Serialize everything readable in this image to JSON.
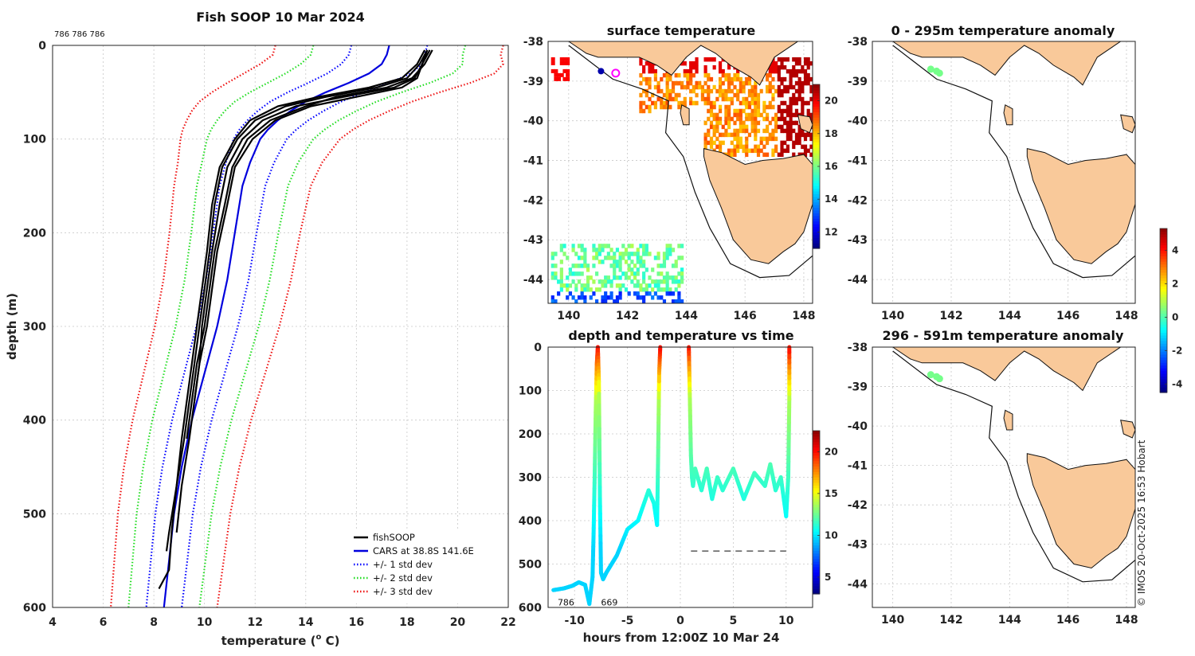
{
  "colors": {
    "fishsoop": "#000000",
    "cars": "#0000dd",
    "std1": "#0000ff",
    "std2": "#22dd22",
    "std3": "#ee1111",
    "land": "#f9c99a",
    "grid": "#c8c8c8"
  },
  "copyright": "© IMOS 20-Oct-2025 16:53 Hobart",
  "chart_data": [
    {
      "id": "profile",
      "type": "line",
      "title": "Fish SOOP 10 Mar 2024",
      "subtitle": "786 786 786",
      "xlabel_main": "temperature (",
      "xlabel_sup": "o",
      "xlabel_tail": " C)",
      "ylabel": "depth (m)",
      "xlim": [
        4,
        22
      ],
      "ylim": [
        600,
        0
      ],
      "xticks": [
        4,
        6,
        8,
        10,
        12,
        14,
        16,
        18,
        20,
        22
      ],
      "yticks": [
        0,
        100,
        200,
        300,
        400,
        500,
        600
      ],
      "grid": true,
      "legend_position": "bottom-right",
      "legend": [
        {
          "label": "fishSOOP",
          "key": "fishsoop",
          "style": "solid"
        },
        {
          "label": "CARS at 38.8S 141.6E",
          "key": "cars",
          "style": "solid"
        },
        {
          "label": "+/- 1 std dev",
          "key": "std1",
          "style": "dotted"
        },
        {
          "label": "+/- 2 std dev",
          "key": "std2",
          "style": "dotted"
        },
        {
          "label": "+/- 3 std dev",
          "key": "std3",
          "style": "dotted"
        }
      ],
      "depth": [
        0,
        10,
        20,
        30,
        40,
        50,
        60,
        70,
        80,
        90,
        100,
        125,
        150,
        200,
        250,
        300,
        350,
        400,
        450,
        500,
        550,
        600
      ],
      "cars_mean": [
        17.3,
        17.2,
        17.0,
        16.5,
        15.7,
        14.8,
        14.0,
        13.4,
        12.9,
        12.5,
        12.2,
        11.8,
        11.5,
        11.2,
        10.9,
        10.5,
        10.0,
        9.5,
        9.1,
        8.8,
        8.6,
        8.4
      ],
      "cars_std": [
        1.5,
        1.5,
        1.6,
        1.65,
        1.6,
        1.5,
        1.4,
        1.3,
        1.2,
        1.12,
        1.05,
        0.95,
        0.9,
        0.86,
        0.84,
        0.82,
        0.8,
        0.78,
        0.76,
        0.74,
        0.72,
        0.7
      ],
      "fishsoop_series": [
        {
          "name": "profile-1",
          "depth": [
            5,
            20,
            35,
            45,
            55,
            65,
            80,
            100,
            130,
            170,
            220,
            260,
            300,
            340,
            380,
            420,
            470,
            520
          ],
          "temp": [
            18.9,
            18.6,
            18.3,
            17.5,
            15.5,
            13.6,
            12.3,
            11.5,
            10.9,
            10.6,
            10.3,
            10.1,
            9.9,
            9.8,
            9.6,
            9.4,
            9.1,
            8.9
          ]
        },
        {
          "name": "profile-2",
          "depth": [
            5,
            20,
            35,
            45,
            55,
            65,
            80,
            100,
            130,
            170,
            220,
            260,
            300,
            340,
            380,
            420,
            470,
            520,
            560,
            580
          ],
          "temp": [
            18.8,
            18.5,
            18.0,
            16.8,
            14.8,
            13.2,
            12.0,
            11.3,
            10.7,
            10.4,
            10.2,
            10.0,
            9.8,
            9.6,
            9.4,
            9.2,
            8.9,
            8.7,
            8.6,
            8.2
          ]
        },
        {
          "name": "profile-3",
          "depth": [
            5,
            20,
            35,
            45,
            55,
            65,
            80,
            100,
            130,
            170,
            220,
            260,
            300,
            340,
            380,
            420
          ],
          "temp": [
            19.0,
            18.7,
            18.2,
            17.2,
            15.2,
            14.0,
            12.6,
            11.7,
            11.1,
            10.8,
            10.4,
            10.2,
            10.0,
            9.7,
            9.5,
            9.3
          ]
        },
        {
          "name": "profile-4",
          "depth": [
            5,
            20,
            35,
            45,
            55,
            65,
            80,
            100,
            130,
            170,
            220,
            260,
            300,
            340,
            380,
            420,
            470,
            520,
            540
          ],
          "temp": [
            18.7,
            18.4,
            17.8,
            16.5,
            14.5,
            12.9,
            11.8,
            11.2,
            10.6,
            10.3,
            10.1,
            9.9,
            9.7,
            9.5,
            9.3,
            9.1,
            8.9,
            8.6,
            8.5
          ]
        },
        {
          "name": "profile-5",
          "depth": [
            5,
            20,
            35,
            45,
            55,
            65,
            80,
            100,
            130,
            170,
            220,
            260,
            300,
            340,
            380
          ],
          "temp": [
            18.8,
            18.6,
            18.4,
            17.8,
            16.0,
            14.2,
            12.8,
            11.9,
            11.2,
            10.9,
            10.5,
            10.3,
            10.1,
            9.8,
            9.6
          ]
        }
      ],
      "labels": []
    },
    {
      "id": "timeseries",
      "type": "scatter",
      "title": "depth and temperature vs time",
      "xlabel": "hours from 12:00Z 10 Mar 24",
      "xlim": [
        -12.5,
        12.5
      ],
      "ylim": [
        600,
        0
      ],
      "xticks": [
        -10,
        -5,
        0,
        5,
        10
      ],
      "yticks": [
        0,
        100,
        200,
        300,
        400,
        500,
        600
      ],
      "grid": true,
      "colorbar_ticks": [
        5,
        10,
        15,
        20
      ],
      "clim": [
        3,
        22.5
      ],
      "dashed_line_depth": 470,
      "dashed_line_x": [
        1,
        10
      ],
      "labels": [
        {
          "text": "786",
          "x": -11.6,
          "y": 588
        },
        {
          "text": "669",
          "x": -7.5,
          "y": 588
        }
      ],
      "segments": [
        {
          "name": "seg-1",
          "hours": [
            -12.0,
            -11.0,
            -10.2,
            -9.6,
            -9.0,
            -8.6,
            -8.3
          ],
          "depth": [
            560,
            556,
            550,
            542,
            548,
            592,
            530
          ]
        },
        {
          "name": "seg-2",
          "hours": [
            -8.3,
            -8.2,
            -8.1,
            -8.0,
            -7.9,
            -7.8,
            -7.7,
            -7.6
          ],
          "depth": [
            530,
            430,
            300,
            150,
            40,
            0,
            80,
            350
          ]
        },
        {
          "name": "seg-3",
          "hours": [
            -7.6,
            -7.5,
            -7.3,
            -7.0,
            -6.5,
            -6.0,
            -5.0,
            -4.0,
            -3.0,
            -2.5,
            -2.2
          ],
          "depth": [
            350,
            520,
            535,
            520,
            500,
            480,
            420,
            400,
            330,
            360,
            410
          ]
        },
        {
          "name": "seg-4",
          "hours": [
            -2.2,
            -2.1,
            -2.0,
            -1.9
          ],
          "depth": [
            410,
            250,
            60,
            0
          ]
        },
        {
          "name": "seg-5",
          "hours": [
            0.8,
            0.9,
            1.0,
            1.1,
            1.2,
            1.4,
            2.0,
            2.5,
            3.0,
            3.5,
            4.0,
            5.0,
            6.0,
            7.0,
            8.0,
            8.5,
            9.0,
            9.5,
            10.0,
            10.2,
            10.3,
            10.3
          ],
          "depth": [
            0,
            120,
            250,
            300,
            320,
            280,
            330,
            280,
            350,
            300,
            330,
            280,
            350,
            290,
            320,
            270,
            330,
            300,
            390,
            300,
            120,
            0
          ]
        }
      ]
    },
    {
      "id": "map-sst",
      "type": "heatmap",
      "title": "surface temperature",
      "xlim": [
        139.3,
        148.3
      ],
      "ylim": [
        -44.6,
        -38
      ],
      "xticks": [
        140,
        142,
        144,
        146,
        148
      ],
      "yticks": [
        -38,
        -39,
        -40,
        -41,
        -42,
        -43,
        -44
      ],
      "colorbar_ticks": [
        12,
        14,
        16,
        18,
        20
      ],
      "clim": [
        11,
        21
      ]
    },
    {
      "id": "map-anom-1",
      "type": "heatmap",
      "title": "0 - 295m temperature anomaly",
      "xlim": [
        139.3,
        148.3
      ],
      "ylim": [
        -44.6,
        -38
      ],
      "xticks": [
        140,
        142,
        144,
        146,
        148
      ],
      "yticks": [
        -38,
        -39,
        -40,
        -41,
        -42,
        -43,
        -44
      ],
      "colorbar_ticks": [
        -4,
        -2,
        0,
        2,
        4
      ],
      "clim": [
        -4.5,
        5.3
      ],
      "points": [
        [
          141.3,
          -38.7
        ],
        [
          141.6,
          -38.8
        ],
        [
          141.5,
          -38.75
        ]
      ]
    },
    {
      "id": "map-anom-2",
      "type": "heatmap",
      "title": "296 - 591m temperature anomaly",
      "xlim": [
        139.3,
        148.3
      ],
      "ylim": [
        -44.6,
        -38
      ],
      "xticks": [
        140,
        142,
        144,
        146,
        148
      ],
      "yticks": [
        -38,
        -39,
        -40,
        -41,
        -42,
        -43,
        -44
      ],
      "points": [
        [
          141.3,
          -38.7
        ],
        [
          141.6,
          -38.8
        ],
        [
          141.5,
          -38.75
        ]
      ]
    }
  ],
  "geo": {
    "mainland": [
      [
        139.3,
        -38.0
      ],
      [
        140.0,
        -38.0
      ],
      [
        140.1,
        -38.05
      ],
      [
        140.6,
        -38.3
      ],
      [
        141.0,
        -38.4
      ],
      [
        141.6,
        -38.4
      ],
      [
        142.4,
        -38.4
      ],
      [
        143.0,
        -38.6
      ],
      [
        143.5,
        -38.85
      ],
      [
        144.0,
        -38.4
      ],
      [
        144.5,
        -38.1
      ],
      [
        145.0,
        -38.3
      ],
      [
        145.5,
        -38.6
      ],
      [
        146.2,
        -38.9
      ],
      [
        146.5,
        -39.1
      ],
      [
        147.0,
        -38.4
      ],
      [
        148.0,
        -37.9
      ],
      [
        148.3,
        -37.8
      ],
      [
        148.3,
        -38.0
      ]
    ],
    "tasmania": [
      [
        144.6,
        -40.7
      ],
      [
        145.2,
        -40.8
      ],
      [
        146.0,
        -41.1
      ],
      [
        146.6,
        -41.0
      ],
      [
        147.3,
        -40.95
      ],
      [
        148.0,
        -40.85
      ],
      [
        148.3,
        -41.1
      ],
      [
        148.3,
        -42.1
      ],
      [
        148.0,
        -42.8
      ],
      [
        147.7,
        -43.1
      ],
      [
        147.3,
        -43.3
      ],
      [
        146.8,
        -43.6
      ],
      [
        146.2,
        -43.5
      ],
      [
        145.6,
        -43.0
      ],
      [
        145.2,
        -42.2
      ],
      [
        144.8,
        -41.5
      ],
      [
        144.6,
        -40.9
      ]
    ],
    "king_island": [
      [
        143.85,
        -39.6
      ],
      [
        144.1,
        -39.7
      ],
      [
        144.1,
        -40.1
      ],
      [
        143.9,
        -40.1
      ],
      [
        143.8,
        -39.8
      ]
    ],
    "flinders_island": [
      [
        147.8,
        -39.85
      ],
      [
        148.2,
        -39.9
      ],
      [
        148.3,
        -40.1
      ],
      [
        148.2,
        -40.3
      ],
      [
        147.9,
        -40.2
      ]
    ],
    "shelf": [
      [
        140.0,
        -38.1
      ],
      [
        141.5,
        -38.95
      ],
      [
        142.5,
        -39.2
      ],
      [
        143.4,
        -39.5
      ],
      [
        143.3,
        -40.3
      ],
      [
        143.9,
        -40.9
      ],
      [
        144.3,
        -41.8
      ],
      [
        144.8,
        -42.7
      ],
      [
        145.5,
        -43.6
      ],
      [
        146.5,
        -43.95
      ],
      [
        147.5,
        -43.9
      ],
      [
        148.3,
        -43.4
      ]
    ]
  }
}
